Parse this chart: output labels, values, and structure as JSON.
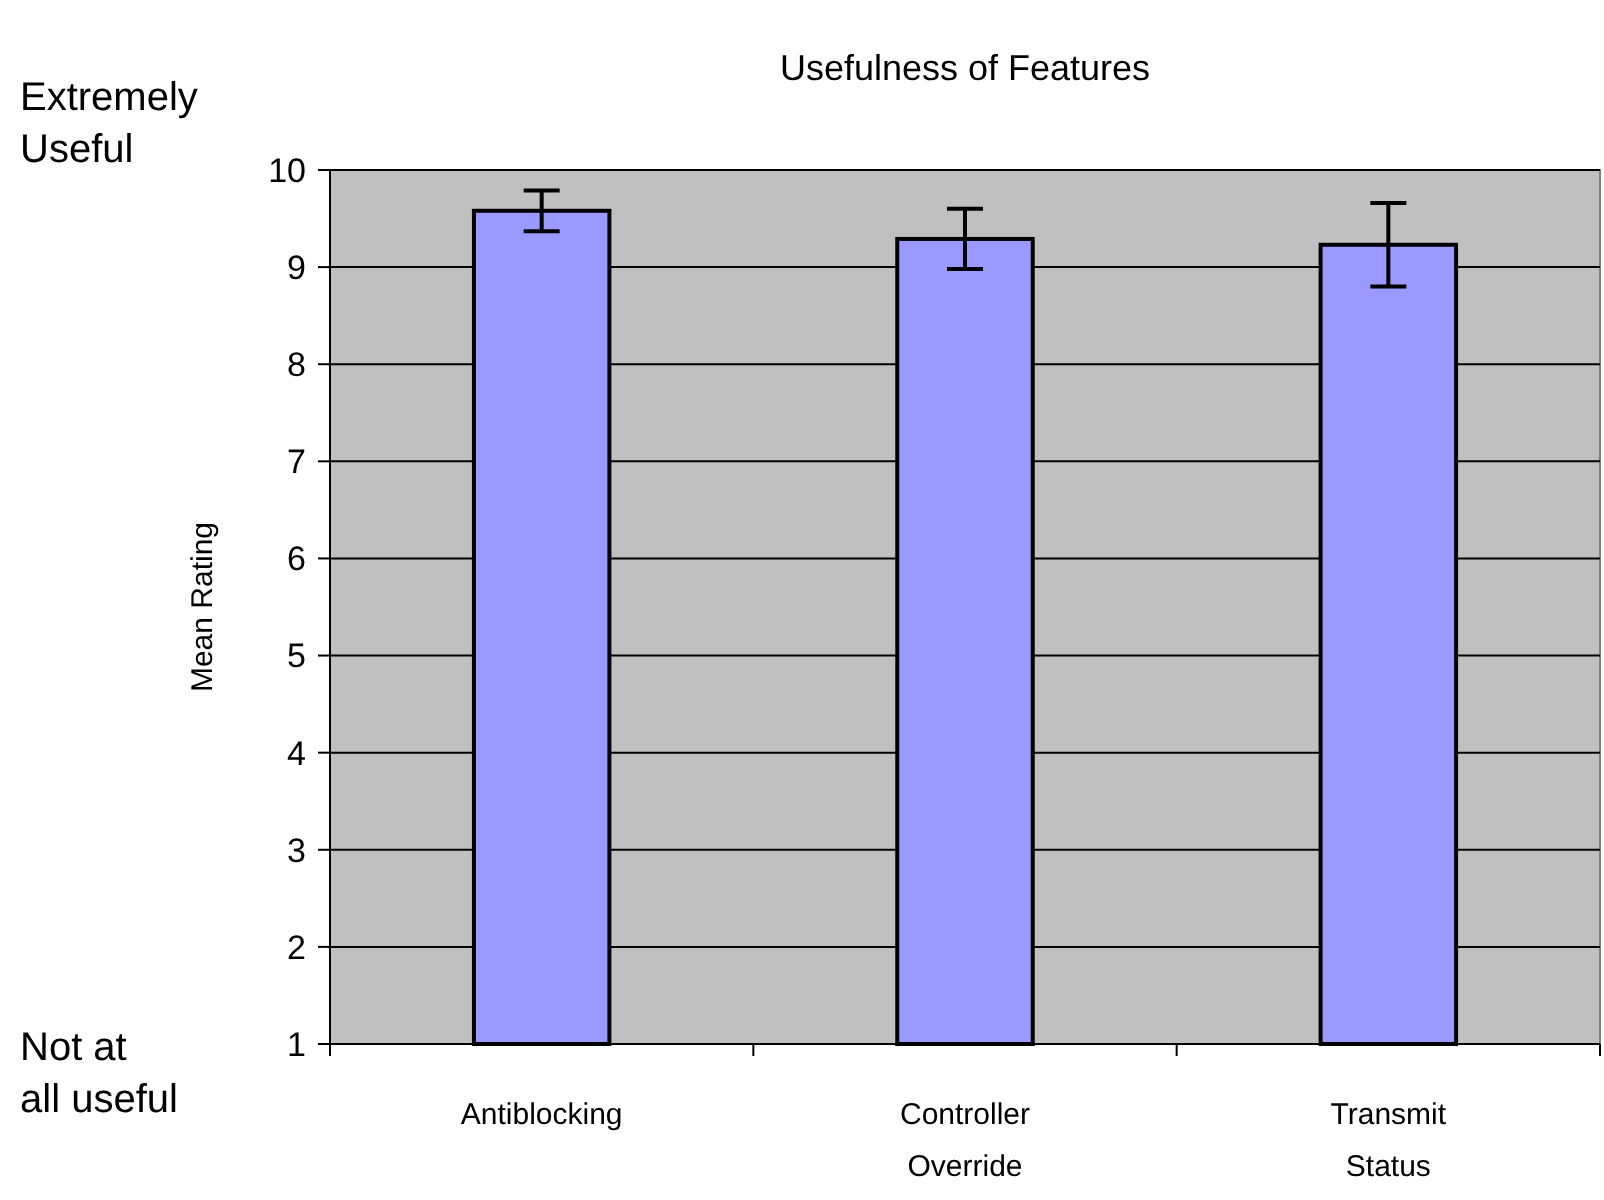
{
  "chart_data": {
    "type": "bar",
    "title": "Usefulness of Features",
    "ylabel": "Mean Rating",
    "categories": [
      "Antiblocking",
      "Controller\nOverride",
      "Transmit\nStatus"
    ],
    "values": [
      9.58,
      9.29,
      9.23
    ],
    "errors": [
      0.21,
      0.31,
      0.43
    ],
    "color": "#9999ff",
    "ylim": [
      1,
      10
    ],
    "yticks": [
      1,
      2,
      3,
      4,
      5,
      6,
      7,
      8,
      9,
      10
    ],
    "grid": "y",
    "annotations": [
      "Extremely\nUseful",
      "Not at\nall useful"
    ]
  }
}
